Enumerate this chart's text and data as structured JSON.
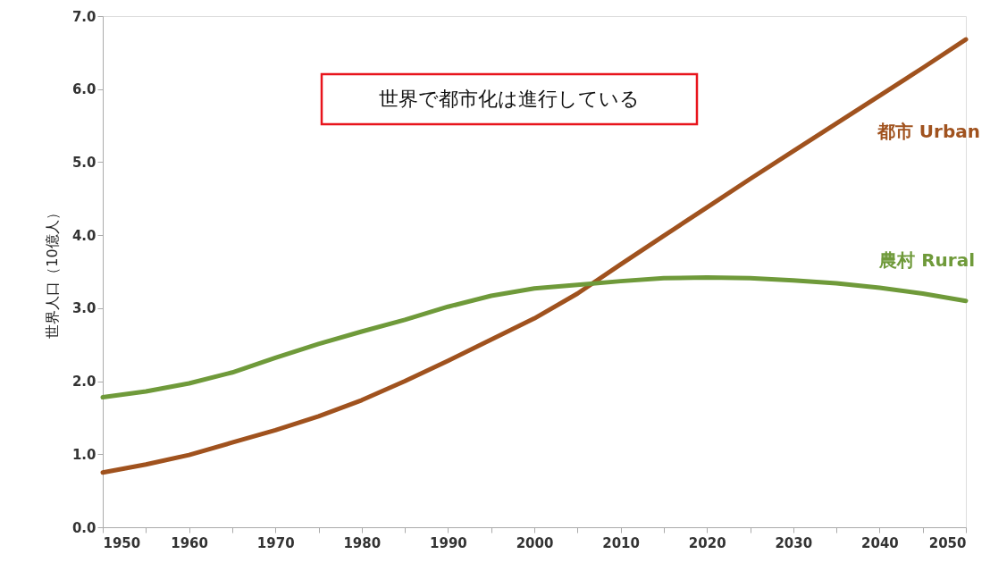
{
  "chart_data": {
    "type": "line",
    "ylabel": "世界人口（10億人）",
    "annotations": [
      "世界で都市化は進行している"
    ],
    "x": [
      1950,
      1955,
      1960,
      1965,
      1970,
      1975,
      1980,
      1985,
      1990,
      1995,
      2000,
      2005,
      2010,
      2015,
      2020,
      2025,
      2030,
      2035,
      2040,
      2045,
      2050
    ],
    "series": [
      {
        "name": "都市 Urban",
        "color": "#a0521e",
        "values": [
          0.75,
          0.86,
          0.99,
          1.16,
          1.33,
          1.52,
          1.74,
          2.0,
          2.28,
          2.57,
          2.86,
          3.2,
          3.6,
          3.99,
          4.38,
          4.77,
          5.15,
          5.53,
          5.91,
          6.29,
          6.68
        ]
      },
      {
        "name": "農村 Rural",
        "color": "#6f9a3a",
        "values": [
          1.78,
          1.86,
          1.97,
          2.12,
          2.32,
          2.51,
          2.68,
          2.84,
          3.02,
          3.17,
          3.27,
          3.32,
          3.37,
          3.41,
          3.42,
          3.41,
          3.38,
          3.34,
          3.28,
          3.2,
          3.1
        ]
      }
    ],
    "xlim": [
      1950,
      2050
    ],
    "xticks": [
      1950,
      {
        "value": 1955,
        "label": null
      },
      1960,
      {
        "value": 1965,
        "label": null
      },
      1970,
      {
        "value": 1975,
        "label": null
      },
      1980,
      {
        "value": 1985,
        "label": null
      },
      1990,
      {
        "value": 1995,
        "label": null
      },
      2000,
      {
        "value": 2005,
        "label": null
      },
      2010,
      {
        "value": 2015,
        "label": null
      },
      2020,
      {
        "value": 2025,
        "label": null
      },
      2030,
      {
        "value": 2035,
        "label": null
      },
      2040,
      {
        "value": 2045,
        "label": null
      },
      2050
    ],
    "ylim": [
      0,
      7
    ],
    "yticks": [
      {
        "value": 0,
        "label": "0.0"
      },
      {
        "value": 1,
        "label": "1.0"
      },
      {
        "value": 2,
        "label": "2.0"
      },
      {
        "value": 3,
        "label": "3.0"
      },
      {
        "value": 4,
        "label": "4.0"
      },
      {
        "value": 5,
        "label": "5.0"
      },
      {
        "value": 6,
        "label": "6.0"
      },
      {
        "value": 7,
        "label": "7.0"
      }
    ],
    "grid": false,
    "marker": "none",
    "line_style": "solid"
  }
}
